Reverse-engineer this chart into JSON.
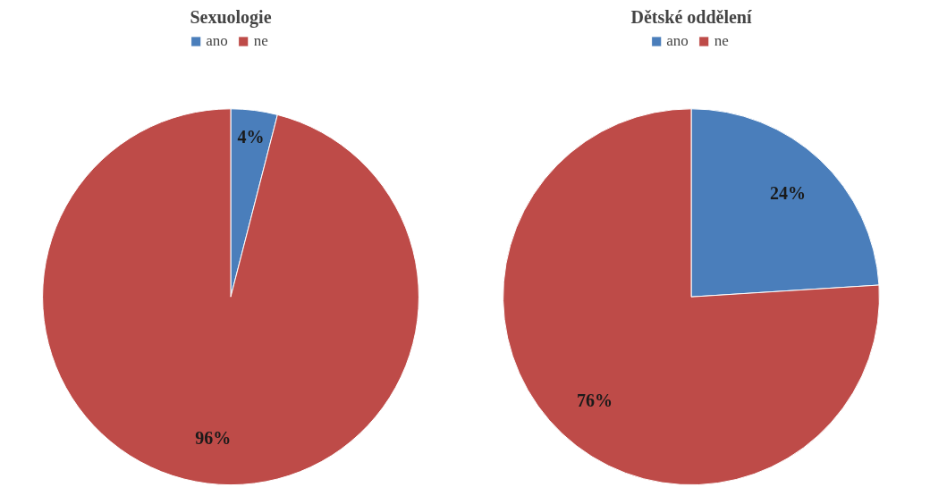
{
  "chart_data": [
    {
      "type": "pie",
      "title": "Sexuologie",
      "categories": [
        "ano",
        "ne"
      ],
      "values": [
        4,
        96
      ],
      "colors": [
        "#4a7ebb",
        "#be4b48"
      ],
      "value_labels": [
        "4%",
        "96%"
      ],
      "legend": "top"
    },
    {
      "type": "pie",
      "title": "Dětské oddělení",
      "categories": [
        "ano",
        "ne"
      ],
      "values": [
        24,
        76
      ],
      "colors": [
        "#4a7ebb",
        "#be4b48"
      ],
      "value_labels": [
        "24%",
        "76%"
      ],
      "legend": "top"
    }
  ]
}
